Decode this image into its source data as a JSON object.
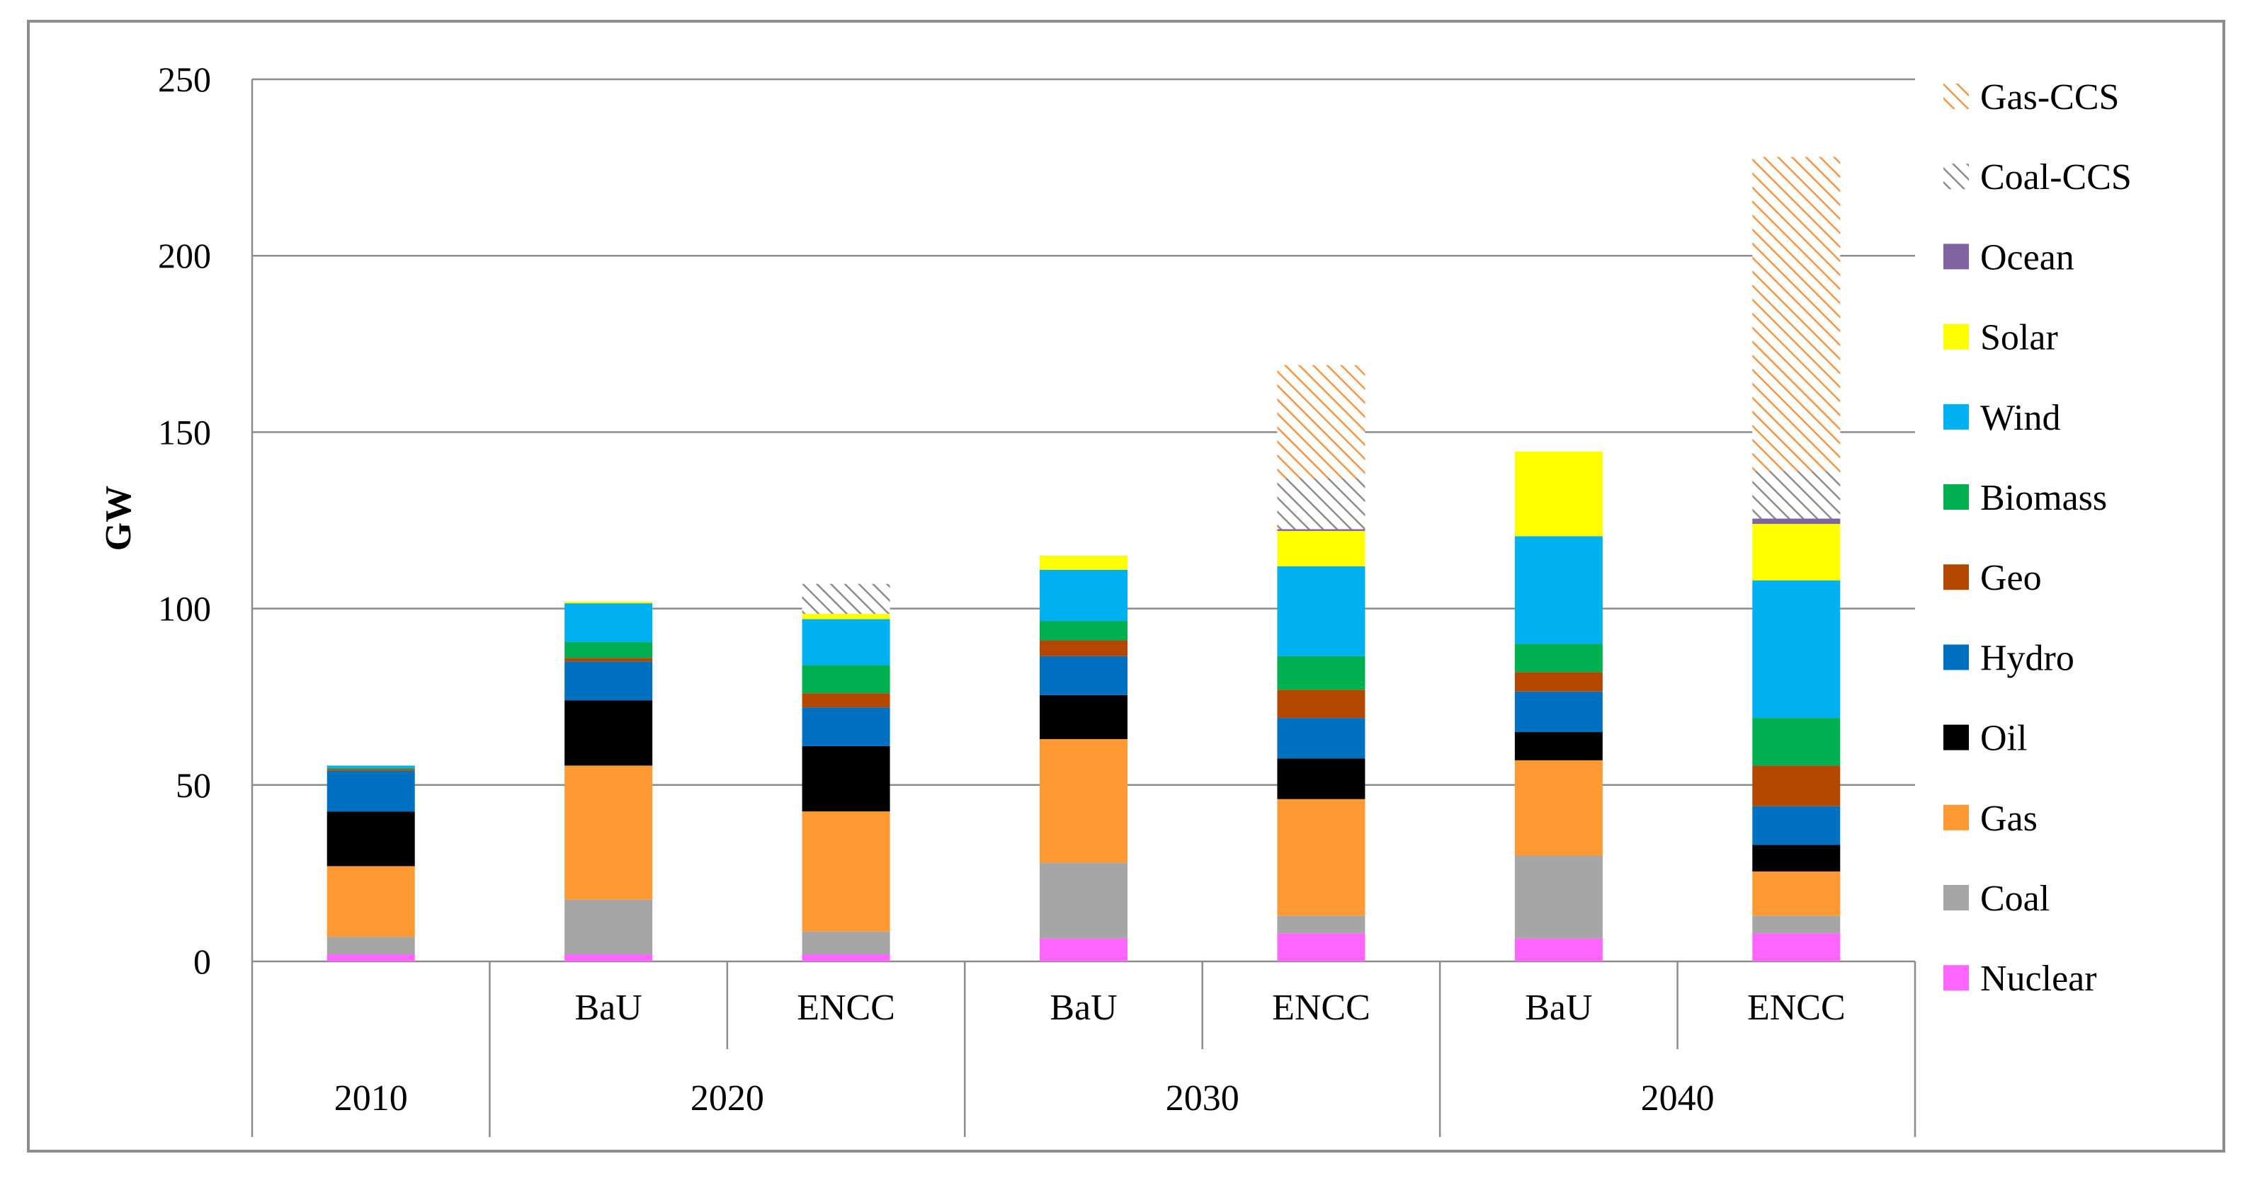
{
  "chart_data": {
    "type": "bar",
    "stacked": true,
    "ylabel": "GW",
    "ylim": [
      0,
      250
    ],
    "yticks": [
      "0",
      "50",
      "100",
      "150",
      "200",
      "250"
    ],
    "ytick_values": [
      0,
      50,
      100,
      150,
      200,
      250
    ],
    "grid": true,
    "legend_position": "right",
    "groups": [
      {
        "year": "2010",
        "bars": [
          ""
        ]
      },
      {
        "year": "2020",
        "bars": [
          "BaU",
          "ENCC"
        ]
      },
      {
        "year": "2030",
        "bars": [
          "BaU",
          "ENCC"
        ]
      },
      {
        "year": "2040",
        "bars": [
          "BaU",
          "ENCC"
        ]
      }
    ],
    "series": [
      {
        "name": "Nuclear",
        "color": "#ff66ff",
        "pattern": "solid",
        "values": [
          2,
          2,
          2,
          6.5,
          8,
          6.5,
          8
        ]
      },
      {
        "name": "Coal",
        "color": "#a6a6a6",
        "pattern": "solid",
        "values": [
          5,
          15.5,
          6.5,
          21.5,
          5,
          23.5,
          5
        ]
      },
      {
        "name": "Gas",
        "color": "#ff9933",
        "pattern": "solid",
        "values": [
          20,
          38,
          34,
          35,
          33,
          27,
          12.5
        ]
      },
      {
        "name": "Oil",
        "color": "#000000",
        "pattern": "solid",
        "values": [
          15.5,
          18.5,
          18.5,
          12.5,
          11.5,
          8,
          7.5
        ]
      },
      {
        "name": "Hydro",
        "color": "#0070c0",
        "pattern": "solid",
        "values": [
          11.5,
          11,
          11,
          11,
          11.5,
          11.5,
          11
        ]
      },
      {
        "name": "Geo",
        "color": "#b34700",
        "pattern": "solid",
        "values": [
          0.5,
          1,
          4,
          4.5,
          8,
          5.5,
          11.5
        ]
      },
      {
        "name": "Biomass",
        "color": "#00b050",
        "pattern": "solid",
        "values": [
          0.3,
          4.5,
          8,
          5.5,
          9.5,
          8,
          13.5
        ]
      },
      {
        "name": "Wind",
        "color": "#00b0f0",
        "pattern": "solid",
        "values": [
          0.7,
          11,
          13,
          14.5,
          25.5,
          30.5,
          39
        ]
      },
      {
        "name": "Solar",
        "color": "#ffff00",
        "pattern": "solid",
        "values": [
          0,
          0.5,
          1.5,
          4,
          10,
          24,
          16
        ]
      },
      {
        "name": "Ocean",
        "color": "#8064a2",
        "pattern": "solid",
        "values": [
          0,
          0,
          0,
          0,
          0.5,
          0,
          1.5
        ]
      },
      {
        "name": "Coal-CCS",
        "color": "#a6a6a6",
        "pattern": "hatch",
        "values": [
          0,
          0,
          8.5,
          0,
          14.5,
          0,
          13.5
        ]
      },
      {
        "name": "Gas-CCS",
        "color": "#f79646",
        "pattern": "hatch",
        "values": [
          0,
          0,
          0,
          0,
          32,
          0,
          89
        ]
      }
    ]
  }
}
